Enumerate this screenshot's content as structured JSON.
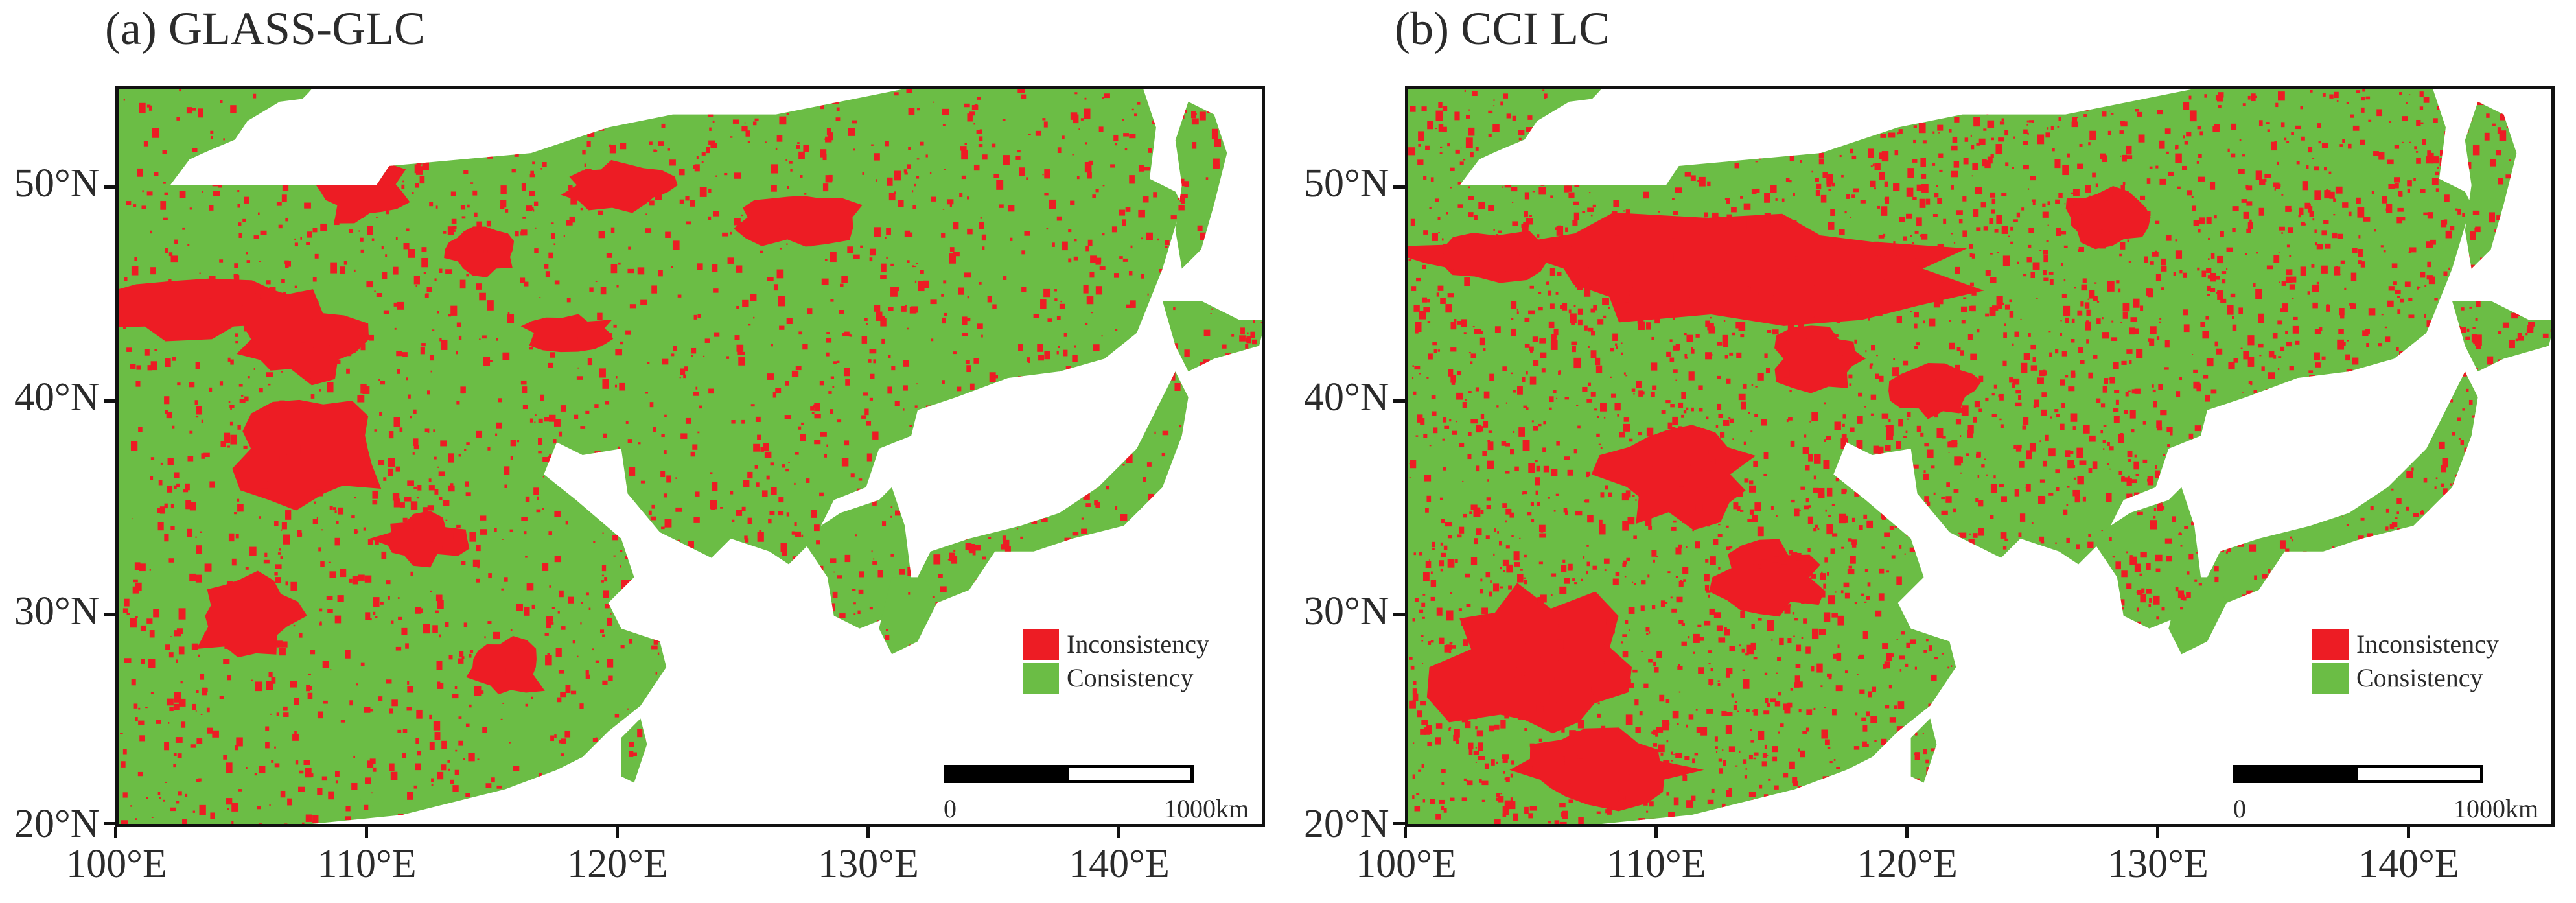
{
  "colors": {
    "inconsistency": "#ed1c24",
    "consistency": "#6bbd45",
    "sea": "#ffffff",
    "frame": "#111111"
  },
  "panels": [
    {
      "title": "(a) GLASS-GLC",
      "map_icon": "east-asia-land-cover-map",
      "legend": [
        {
          "label": "Inconsistency",
          "color": "#ed1c24"
        },
        {
          "label": "Consistency",
          "color": "#6bbd45"
        }
      ],
      "scale_bar": {
        "start": "0",
        "end": "1000km"
      }
    },
    {
      "title": "(b) CCI LC",
      "map_icon": "east-asia-land-cover-map",
      "legend": [
        {
          "label": "Inconsistency",
          "color": "#ed1c24"
        },
        {
          "label": "Consistency",
          "color": "#6bbd45"
        }
      ],
      "scale_bar": {
        "start": "0",
        "end": "1000km"
      }
    }
  ],
  "axes": {
    "lat_labels": [
      "50°N",
      "40°N",
      "30°N",
      "20°N"
    ],
    "lat_values": [
      50,
      40,
      30,
      20
    ],
    "lon_labels": [
      "100°E",
      "110°E",
      "120°E",
      "130°E",
      "140°E"
    ],
    "lon_values": [
      100,
      110,
      120,
      130,
      140
    ],
    "lat_range": [
      20,
      54.6
    ],
    "lon_range": [
      100,
      145.8
    ]
  }
}
